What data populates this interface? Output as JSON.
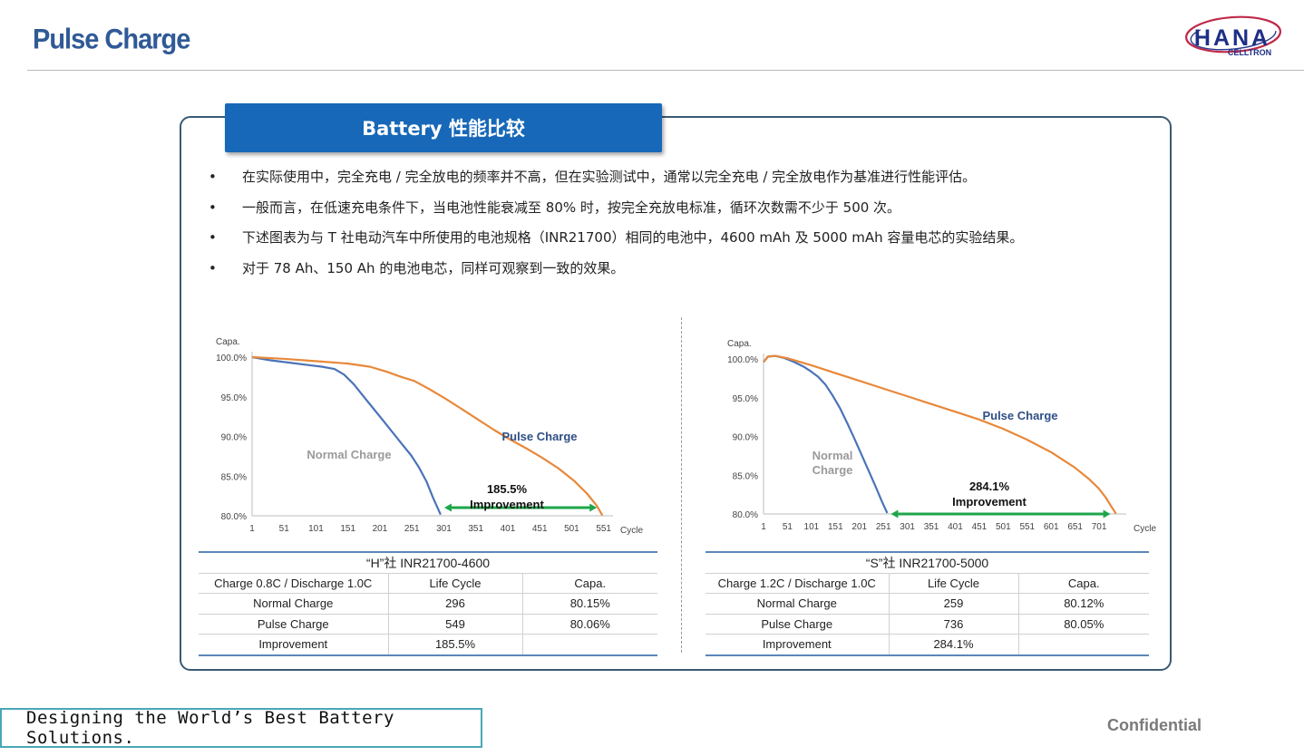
{
  "page": {
    "title": "Pulse Charge",
    "logo": {
      "name": "HANA",
      "sub": "CELLTRON"
    },
    "section_title": "Battery 性能比较",
    "bullets": [
      "在实际使用中，完全充电 / 完全放电的频率并不高，但在实验测试中，通常以完全充电 / 完全放电作为基准进行性能评估。",
      "一般而言，在低速充电条件下，当电池性能衰减至 80% 时，按完全充放电标准，循环次数需不少于 500 次。",
      "下述图表为与 T 社电动汽车中所使用的电池规格（INR21700）相同的电池中，4600 mAh 及 5000 mAh 容量电芯的实验结果。",
      "对于 78 Ah、150 Ah 的电池电芯，同样可观察到一致的效果。"
    ],
    "bullet_char": "•",
    "slogan": "Designing the World’s Best Battery Solutions.",
    "confidential": "Confidential"
  },
  "colors": {
    "normal": "#4a74b8",
    "pulse": "#e8883a",
    "improvement": "#1ea64a",
    "banner": "#1768b8",
    "title": "#2f5a96"
  },
  "tables": [
    {
      "caption": "“H”社 INR21700-4600",
      "header": [
        "Charge 0.8C / Discharge 1.0C",
        "Life Cycle",
        "Capa."
      ],
      "rows": [
        [
          "Normal Charge",
          "296",
          "80.15%"
        ],
        [
          "Pulse Charge",
          "549",
          "80.06%"
        ],
        [
          "Improvement",
          "185.5%",
          ""
        ]
      ]
    },
    {
      "caption": "“S”社 INR21700-5000",
      "header": [
        "Charge 1.2C / Discharge 1.0C",
        "Life Cycle",
        "Capa."
      ],
      "rows": [
        [
          "Normal Charge",
          "259",
          "80.12%"
        ],
        [
          "Pulse Charge",
          "736",
          "80.05%"
        ],
        [
          "Improvement",
          "284.1%",
          ""
        ]
      ]
    }
  ],
  "chart_data": [
    {
      "type": "line",
      "ylabel": "Capa.",
      "xlabel": "Cycle",
      "ylim": [
        80,
        100
      ],
      "xlim": [
        1,
        560
      ],
      "yticks": [
        "100.0%",
        "95.0%",
        "90.0%",
        "85.0%",
        "80.0%"
      ],
      "ytick_values": [
        100,
        95,
        90,
        85,
        80
      ],
      "xticks": [
        "1",
        "51",
        "101",
        "151",
        "201",
        "251",
        "301",
        "351",
        "401",
        "451",
        "501",
        "551"
      ],
      "xtick_values": [
        1,
        51,
        101,
        151,
        201,
        251,
        301,
        351,
        401,
        451,
        501,
        551
      ],
      "series": [
        {
          "name": "Normal Charge",
          "color": "#4a74b8",
          "x": [
            1,
            30,
            60,
            90,
            110,
            130,
            145,
            160,
            175,
            190,
            205,
            220,
            235,
            250,
            262,
            274,
            284,
            296
          ],
          "y": [
            100,
            99.6,
            99.3,
            99.0,
            98.8,
            98.5,
            97.8,
            96.6,
            95.1,
            93.6,
            92.1,
            90.6,
            89.1,
            87.6,
            86.1,
            84.3,
            82.3,
            80.15
          ]
        },
        {
          "name": "Pulse Charge",
          "color": "#e8883a",
          "x": [
            1,
            50,
            100,
            150,
            185,
            210,
            235,
            255,
            280,
            305,
            330,
            355,
            380,
            405,
            430,
            455,
            480,
            505,
            525,
            540,
            549
          ],
          "y": [
            100,
            99.8,
            99.5,
            99.2,
            98.8,
            98.2,
            97.5,
            97.0,
            95.9,
            94.7,
            93.4,
            92.1,
            90.8,
            89.6,
            88.5,
            87.3,
            86.0,
            84.4,
            82.8,
            81.3,
            80.06
          ]
        }
      ],
      "annotation": {
        "lines": [
          "185.5%",
          "Improvement"
        ],
        "x_from": 296,
        "x_to": 549
      }
    },
    {
      "type": "line",
      "ylabel": "Capa.",
      "xlabel": "Cycle",
      "ylim": [
        80,
        100
      ],
      "xlim": [
        1,
        750
      ],
      "yticks": [
        "100.0%",
        "95.0%",
        "90.0%",
        "85.0%",
        "80.0%"
      ],
      "ytick_values": [
        100,
        95,
        90,
        85,
        80
      ],
      "xticks": [
        "1",
        "51",
        "101",
        "151",
        "201",
        "251",
        "301",
        "351",
        "401",
        "451",
        "501",
        "551",
        "601",
        "651",
        "701"
      ],
      "xtick_values": [
        1,
        51,
        101,
        151,
        201,
        251,
        301,
        351,
        401,
        451,
        501,
        551,
        601,
        651,
        701
      ],
      "series": [
        {
          "name": "Normal Charge",
          "color": "#4a74b8",
          "x": [
            1,
            10,
            25,
            45,
            65,
            85,
            100,
            115,
            130,
            145,
            160,
            175,
            190,
            205,
            220,
            235,
            248,
            259
          ],
          "y": [
            99.6,
            100.3,
            100.4,
            100.1,
            99.6,
            99.0,
            98.4,
            97.7,
            96.7,
            95.3,
            93.7,
            91.8,
            89.8,
            87.7,
            85.6,
            83.5,
            81.6,
            80.12
          ]
        },
        {
          "name": "Pulse Charge",
          "color": "#e8883a",
          "x": [
            1,
            10,
            25,
            50,
            100,
            150,
            200,
            250,
            300,
            350,
            400,
            450,
            500,
            550,
            600,
            650,
            680,
            700,
            715,
            726,
            736
          ],
          "y": [
            99.6,
            100.3,
            100.4,
            100.1,
            99.2,
            98.2,
            97.2,
            96.2,
            95.2,
            94.2,
            93.2,
            92.2,
            91.0,
            89.6,
            88.0,
            86.0,
            84.5,
            83.3,
            82.1,
            81.0,
            80.05
          ]
        }
      ],
      "annotation": {
        "lines": [
          "284.1%",
          "Improvement"
        ],
        "x_from": 259,
        "x_to": 736
      }
    }
  ]
}
